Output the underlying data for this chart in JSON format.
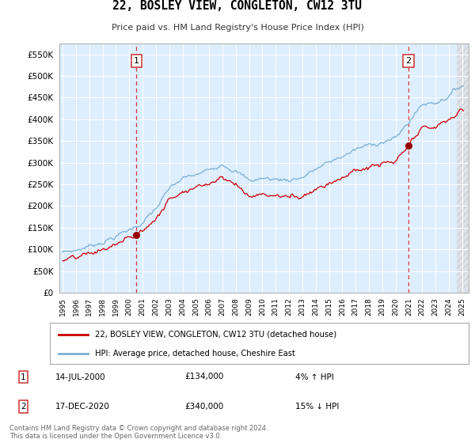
{
  "title": "22, BOSLEY VIEW, CONGLETON, CW12 3TU",
  "subtitle": "Price paid vs. HM Land Registry's House Price Index (HPI)",
  "background_color": "#ffffff",
  "plot_bg_color": "#ddeeff",
  "grid_color": "#c8d8e8",
  "ylim": [
    0,
    575000
  ],
  "yticks": [
    0,
    50000,
    100000,
    150000,
    200000,
    250000,
    300000,
    350000,
    400000,
    450000,
    500000,
    550000
  ],
  "xlabel_years": [
    "1995",
    "1996",
    "1997",
    "1998",
    "1999",
    "2000",
    "2001",
    "2002",
    "2003",
    "2004",
    "2005",
    "2006",
    "2007",
    "2008",
    "2009",
    "2010",
    "2011",
    "2012",
    "2013",
    "2014",
    "2015",
    "2016",
    "2017",
    "2018",
    "2019",
    "2020",
    "2021",
    "2022",
    "2023",
    "2024",
    "2025"
  ],
  "hpi_color": "#7bafd4",
  "price_color": "#cc0000",
  "vline_color": "#cc3333",
  "annotation1_label": "1",
  "annotation1_year": 2000.54,
  "annotation1_price": 134000,
  "annotation1_date": "14-JUL-2000",
  "annotation1_amount": "£134,000",
  "annotation1_hpi": "4% ↑ HPI",
  "annotation2_label": "2",
  "annotation2_year": 2020.96,
  "annotation2_price": 340000,
  "annotation2_date": "17-DEC-2020",
  "annotation2_amount": "£340,000",
  "annotation2_hpi": "15% ↓ HPI",
  "legend_line1": "22, BOSLEY VIEW, CONGLETON, CW12 3TU (detached house)",
  "legend_line2": "HPI: Average price, detached house, Cheshire East",
  "footer": "Contains HM Land Registry data © Crown copyright and database right 2024.\nThis data is licensed under the Open Government Licence v3.0.",
  "xlim_left": 1994.75,
  "xlim_right": 2025.5
}
